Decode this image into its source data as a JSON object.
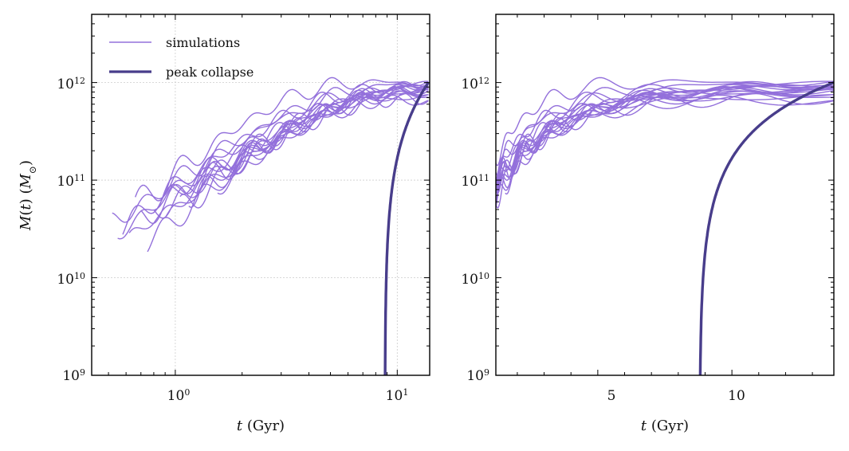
{
  "colors": {
    "sim": "#9370db",
    "peak": "#483d8b",
    "grid": "#cccccc",
    "axis": "#000000"
  },
  "legend": [
    {
      "label": "simulations",
      "color": "#9370db"
    },
    {
      "label": "peak collapse",
      "color": "#483d8b"
    }
  ],
  "chart_data": [
    {
      "type": "line",
      "panel": "left",
      "xscale": "log",
      "yscale": "log",
      "xlim": [
        0.42,
        14.0
      ],
      "ylim": [
        1000000000.0,
        5000000000000.0
      ],
      "xlabel": "t (Gyr)",
      "ylabel": "M(t) (M☉)",
      "grid": true,
      "legend_position": "top-left",
      "x_ticks": [
        {
          "value": 1,
          "label": "10^0"
        },
        {
          "value": 10,
          "label": "10^1"
        }
      ],
      "y_ticks": [
        {
          "value": 1000000000.0,
          "label": "10^9"
        },
        {
          "value": 10000000000.0,
          "label": "10^10"
        },
        {
          "value": 100000000000.0,
          "label": "10^11"
        },
        {
          "value": 1000000000000.0,
          "label": "10^12"
        }
      ]
    },
    {
      "type": "line",
      "panel": "right",
      "xscale": "linear",
      "yscale": "log",
      "xlim": [
        1.2,
        13.8
      ],
      "ylim": [
        1000000000.0,
        5000000000000.0
      ],
      "xlabel": "t (Gyr)",
      "ylabel": "",
      "grid": false,
      "x_ticks": [
        {
          "value": 5,
          "label": "5"
        },
        {
          "value": 10,
          "label": "10"
        }
      ],
      "y_ticks": [
        {
          "value": 1000000000.0,
          "label": "10^9"
        },
        {
          "value": 10000000000.0,
          "label": "10^10"
        },
        {
          "value": 100000000000.0,
          "label": "10^11"
        },
        {
          "value": 1000000000000.0,
          "label": "10^12"
        }
      ]
    }
  ],
  "series": {
    "simulations": {
      "name": "simulations",
      "curves": [
        {
          "t0": 0.52,
          "m0": 2800000000.0,
          "t1": 4.0,
          "mf": 950000000000.0,
          "k": 1.6,
          "a": 0.12,
          "p": 0.3
        },
        {
          "t0": 0.55,
          "m0": 2300000000.0,
          "t1": 3.5,
          "mf": 800000000000.0,
          "k": 1.8,
          "a": 0.1,
          "p": 1.1
        },
        {
          "t0": 0.58,
          "m0": 3200000000.0,
          "t1": 5.0,
          "mf": 900000000000.0,
          "k": 1.5,
          "a": 0.14,
          "p": 2.0
        },
        {
          "t0": 0.62,
          "m0": 2400000000.0,
          "t1": 4.5,
          "mf": 750000000000.0,
          "k": 1.7,
          "a": 0.09,
          "p": 2.7
        },
        {
          "t0": 0.66,
          "m0": 2000000000.0,
          "t1": 3.0,
          "mf": 1000000000000.0,
          "k": 1.9,
          "a": 0.13,
          "p": 0.8
        },
        {
          "t0": 0.7,
          "m0": 2500000000.0,
          "t1": 6.0,
          "mf": 850000000000.0,
          "k": 1.4,
          "a": 0.11,
          "p": 1.7
        },
        {
          "t0": 0.75,
          "m0": 1600000000.0,
          "t1": 4.0,
          "mf": 650000000000.0,
          "k": 2.0,
          "a": 0.1,
          "p": 3.3
        },
        {
          "t0": 0.8,
          "m0": 1800000000.0,
          "t1": 5.5,
          "mf": 980000000000.0,
          "k": 1.6,
          "a": 0.15,
          "p": 0.2
        },
        {
          "t0": 0.85,
          "m0": 1700000000.0,
          "t1": 3.8,
          "mf": 880000000000.0,
          "k": 1.7,
          "a": 0.12,
          "p": 2.3
        },
        {
          "t0": 0.9,
          "m0": 2200000000.0,
          "t1": 4.2,
          "mf": 700000000000.0,
          "k": 1.8,
          "a": 0.09,
          "p": 1.4
        },
        {
          "t0": 0.95,
          "m0": 1900000000.0,
          "t1": 5.2,
          "mf": 920000000000.0,
          "k": 1.5,
          "a": 0.13,
          "p": 2.9
        },
        {
          "t0": 1.05,
          "m0": 2600000000.0,
          "t1": 4.6,
          "mf": 830000000000.0,
          "k": 1.9,
          "a": 0.11,
          "p": 0.6
        },
        {
          "t0": 1.15,
          "m0": 3000000000.0,
          "t1": 6.5,
          "mf": 1050000000000.0,
          "k": 1.5,
          "a": 0.14,
          "p": 1.9
        },
        {
          "t0": 1.25,
          "m0": 2400000000.0,
          "t1": 5.0,
          "mf": 780000000000.0,
          "k": 1.7,
          "a": 0.1,
          "p": 3.0
        },
        {
          "t0": 1.4,
          "m0": 3600000000.0,
          "t1": 4.8,
          "mf": 860000000000.0,
          "k": 1.6,
          "a": 0.12,
          "p": 1.2
        },
        {
          "t0": 1.55,
          "m0": 2900000000.0,
          "t1": 5.8,
          "mf": 940000000000.0,
          "k": 1.8,
          "a": 0.1,
          "p": 2.5
        },
        {
          "t0": 1.7,
          "m0": 3800000000.0,
          "t1": 4.4,
          "mf": 680000000000.0,
          "k": 1.7,
          "a": 0.12,
          "p": 0.4
        },
        {
          "t0": 1.8,
          "m0": 2700000000.0,
          "t1": 5.4,
          "mf": 890000000000.0,
          "k": 1.6,
          "a": 0.11,
          "p": 1.6
        }
      ]
    },
    "peak_collapse": {
      "name": "peak collapse",
      "t_form": 8.8,
      "m_final": 1000000000000.0,
      "t_final": 13.8,
      "shape": 0.55
    }
  }
}
